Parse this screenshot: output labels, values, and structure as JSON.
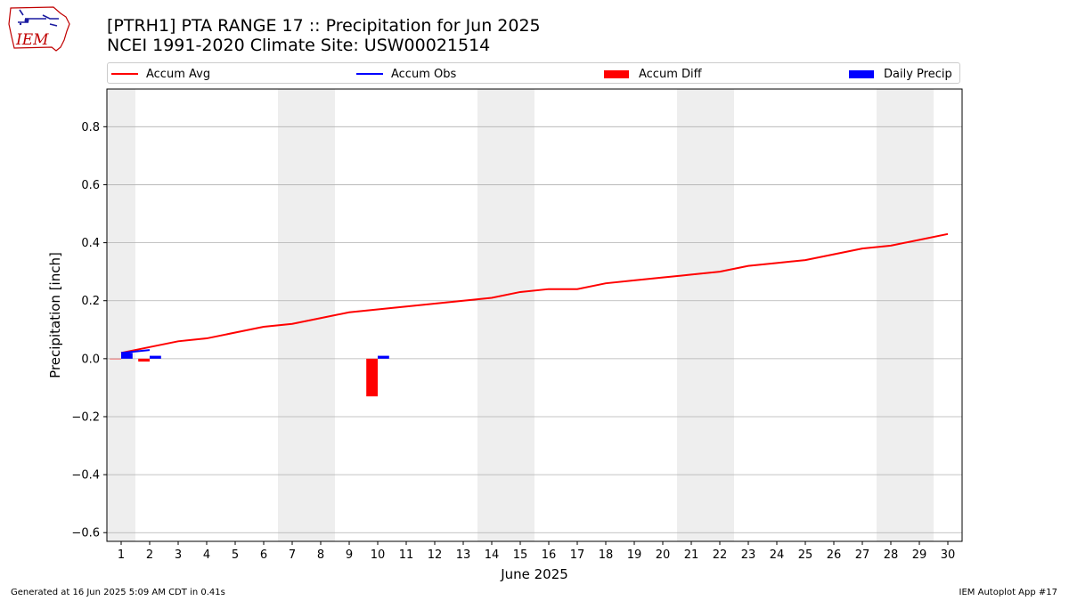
{
  "header": {
    "logo_text": "IEM",
    "title_line1": "[PTRH1] PTA RANGE 17 :: Precipitation for Jun 2025",
    "title_line2": "NCEI 1991-2020 Climate Site: USW00021514"
  },
  "legend": {
    "accum_avg": "Accum Avg",
    "accum_obs": "Accum Obs",
    "accum_diff": "Accum Diff",
    "daily_precip": "Daily Precip"
  },
  "footer": {
    "left": "Generated at 16 Jun 2025 5:09 AM CDT in 0.41s",
    "right": "IEM Autoplot App #17"
  },
  "colors": {
    "accum_avg": "#ff0000",
    "accum_obs": "#0000ff",
    "accum_diff": "#ff0000",
    "daily_precip": "#0000ff",
    "weekend_shade": "#eeeeee",
    "grid": "#b0b0b0"
  },
  "chart_data": {
    "type": "bar",
    "xlabel": "June 2025",
    "ylabel": "Precipitation [inch]",
    "xlim": [
      0.5,
      30.5
    ],
    "ylim": [
      -0.63,
      0.93
    ],
    "x_ticks": [
      1,
      2,
      3,
      4,
      5,
      6,
      7,
      8,
      9,
      10,
      11,
      12,
      13,
      14,
      15,
      16,
      17,
      18,
      19,
      20,
      21,
      22,
      23,
      24,
      25,
      26,
      27,
      28,
      29,
      30
    ],
    "y_ticks": [
      -0.6,
      -0.4,
      -0.2,
      0.0,
      0.2,
      0.4,
      0.6,
      0.8
    ],
    "y_tick_labels": [
      "−0.6",
      "−0.4",
      "−0.2",
      "0.0",
      "0.2",
      "0.4",
      "0.6",
      "0.8"
    ],
    "grid": "y",
    "legend_position": "top",
    "weekend_days": [
      1,
      7,
      8,
      14,
      15,
      21,
      22,
      28,
      29
    ],
    "series": [
      {
        "name": "Accum Avg",
        "kind": "line",
        "x": [
          1,
          2,
          3,
          4,
          5,
          6,
          7,
          8,
          9,
          10,
          11,
          12,
          13,
          14,
          15,
          16,
          17,
          18,
          19,
          20,
          21,
          22,
          23,
          24,
          25,
          26,
          27,
          28,
          29,
          30
        ],
        "values": [
          0.02,
          0.04,
          0.06,
          0.07,
          0.09,
          0.11,
          0.12,
          0.14,
          0.16,
          0.17,
          0.18,
          0.19,
          0.2,
          0.21,
          0.23,
          0.24,
          0.24,
          0.26,
          0.27,
          0.28,
          0.29,
          0.3,
          0.32,
          0.33,
          0.34,
          0.36,
          0.38,
          0.39,
          0.41,
          0.43
        ]
      },
      {
        "name": "Accum Obs",
        "kind": "line",
        "x": [
          1,
          2
        ],
        "values": [
          0.02,
          0.03
        ]
      },
      {
        "name": "Accum Diff",
        "kind": "bar",
        "x": [
          1,
          2,
          10
        ],
        "values": [
          0.0,
          -0.01,
          -0.13
        ]
      },
      {
        "name": "Daily Precip",
        "kind": "bar",
        "x": [
          1,
          2,
          10
        ],
        "values": [
          0.02,
          0.01,
          0.01
        ]
      }
    ]
  }
}
